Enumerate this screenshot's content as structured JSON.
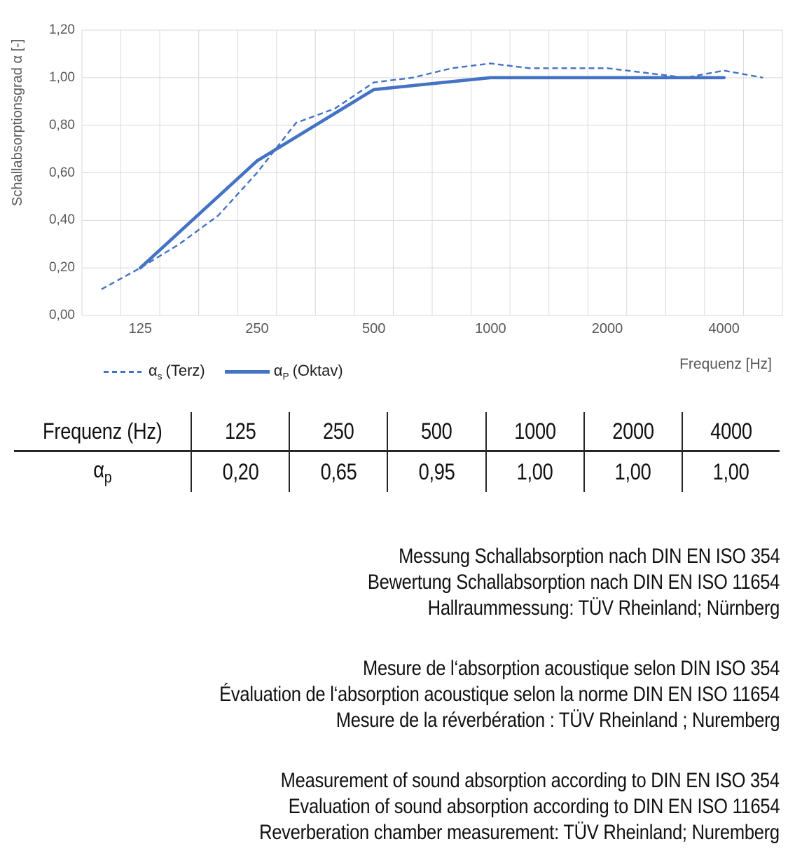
{
  "chart_data": {
    "type": "line",
    "title": "",
    "ylabel": "Schallabsorptionsgrad α [-]",
    "xlabel": "Frequenz [Hz]",
    "ylim": [
      0,
      1.2
    ],
    "grid": true,
    "x_scale": "1/3-octave log categories",
    "legend_position": "bottom-left",
    "categories": [
      100,
      125,
      160,
      200,
      250,
      315,
      400,
      500,
      630,
      800,
      1000,
      1250,
      1600,
      2000,
      2500,
      3150,
      4000,
      5000
    ],
    "y_ticks": [
      {
        "v": 0.0,
        "label": "0,00"
      },
      {
        "v": 0.2,
        "label": "0,20"
      },
      {
        "v": 0.4,
        "label": "0,40"
      },
      {
        "v": 0.6,
        "label": "0,60"
      },
      {
        "v": 0.8,
        "label": "0,80"
      },
      {
        "v": 1.0,
        "label": "1,00"
      },
      {
        "v": 1.2,
        "label": "1,20"
      }
    ],
    "x_ticks": [
      {
        "v": 125,
        "label": "125"
      },
      {
        "v": 250,
        "label": "250"
      },
      {
        "v": 500,
        "label": "500"
      },
      {
        "v": 1000,
        "label": "1000"
      },
      {
        "v": 2000,
        "label": "2000"
      },
      {
        "v": 4000,
        "label": "4000"
      }
    ],
    "series": [
      {
        "name": "αs (Terz)",
        "label": {
          "sym": "α",
          "sub": "s",
          "rest": "(Terz)"
        },
        "style": "dashed",
        "x": [
          100,
          125,
          160,
          200,
          250,
          315,
          400,
          500,
          630,
          800,
          1000,
          1250,
          1600,
          2000,
          2500,
          3150,
          4000,
          5000
        ],
        "values": [
          0.11,
          0.2,
          0.3,
          0.42,
          0.6,
          0.81,
          0.87,
          0.98,
          1.0,
          1.04,
          1.06,
          1.04,
          1.04,
          1.04,
          1.02,
          1.0,
          1.03,
          1.0
        ]
      },
      {
        "name": "αP (Oktav)",
        "label": {
          "sym": "α",
          "sub": "P",
          "rest": "(Oktav)"
        },
        "style": "solid",
        "x": [
          125,
          250,
          500,
          1000,
          2000,
          4000
        ],
        "values": [
          0.2,
          0.65,
          0.95,
          1.0,
          1.0,
          1.0
        ]
      }
    ],
    "colors": {
      "series": "#4472C4",
      "grid": "#D9D9D9",
      "axis_text": "#595959"
    }
  },
  "table": {
    "header_label": "Frequenz (Hz)",
    "frequencies": [
      "125",
      "250",
      "500",
      "1000",
      "2000",
      "4000"
    ],
    "row_label": {
      "sym": "α",
      "sub": "p"
    },
    "values": [
      "0,20",
      "0,65",
      "0,95",
      "1,00",
      "1,00",
      "1,00"
    ]
  },
  "notes": {
    "de": [
      "Messung Schallabsorption nach DIN EN ISO 354",
      "Bewertung Schallabsorption nach DIN EN ISO 11654",
      "Hallraummessung: TÜV Rheinland; Nürnberg"
    ],
    "fr": [
      "Mesure de l‘absorption acoustique selon DIN ISO 354",
      "Évaluation de l‘absorption acoustique selon la norme DIN EN ISO 11654",
      "Mesure de la réverbération : TÜV Rheinland ; Nuremberg"
    ],
    "en": [
      "Measurement of sound absorption according to DIN EN ISO 354",
      "Evaluation of sound absorption according to DIN EN ISO 11654",
      "Reverberation chamber measurement: TÜV Rheinland; Nuremberg"
    ]
  }
}
